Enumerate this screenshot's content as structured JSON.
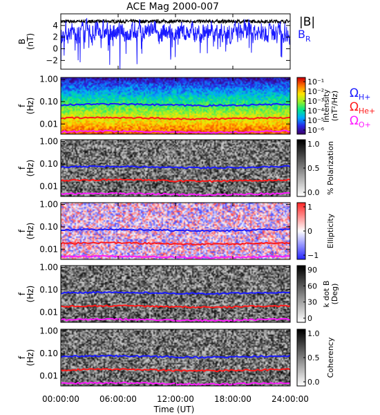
{
  "title": "ACE Mag 2000-007",
  "chart_data": [
    {
      "type": "line",
      "ylabel": "B\n(nT)",
      "ylim": [
        -3.5,
        6
      ],
      "yticks": [
        "4",
        "2",
        "0",
        "−2"
      ],
      "ytick_values": [
        4,
        2,
        0,
        -2
      ],
      "series": [
        {
          "name": "|B|",
          "color": "#000000",
          "mean": 4.7,
          "spread": 0.3
        },
        {
          "name": "B_R",
          "color": "#1a1aff",
          "mean": 2.8,
          "spread": 2.0
        }
      ]
    },
    {
      "type": "heatmap",
      "ylabel": "f\n(Hz)",
      "yticks": [
        "1.00",
        "0.10",
        "0.01"
      ],
      "ytick_values": [
        1.0,
        0.1,
        0.01
      ],
      "ylim": [
        0.0035,
        1.2
      ],
      "colormap": "rainbow",
      "colorbar_label": "Intensity\n(nT²/Hz)",
      "colorbar_ticks": [
        "10⁻¹",
        "10⁻²",
        "10⁻³",
        "10⁻⁴",
        "10⁻⁵",
        "10⁻⁶"
      ]
    },
    {
      "type": "heatmap",
      "ylabel": "f\n(Hz)",
      "yticks": [
        "1.00",
        "0.10",
        "0.01"
      ],
      "ytick_values": [
        1.0,
        0.1,
        0.01
      ],
      "ylim": [
        0.0035,
        1.2
      ],
      "colormap": "gray",
      "colorbar_label": "% Polarization",
      "colorbar_ticks": [
        "1.0",
        "0.5",
        "0.0"
      ]
    },
    {
      "type": "heatmap",
      "ylabel": "f\n(Hz)",
      "yticks": [
        "1.00",
        "0.10",
        "0.01"
      ],
      "ytick_values": [
        1.0,
        0.1,
        0.01
      ],
      "ylim": [
        0.0035,
        1.2
      ],
      "colormap": "bluewhitered",
      "colorbar_label": "Ellipticity",
      "colorbar_ticks": [
        "1",
        "0",
        "−1"
      ]
    },
    {
      "type": "heatmap",
      "ylabel": "f\n(Hz)",
      "yticks": [
        "1.00",
        "0.10",
        "0.01"
      ],
      "ytick_values": [
        1.0,
        0.1,
        0.01
      ],
      "ylim": [
        0.0035,
        1.2
      ],
      "colormap": "gray",
      "colorbar_label": "k dot B\n(Deg)",
      "colorbar_ticks": [
        "90",
        "60",
        "30",
        "0"
      ]
    },
    {
      "type": "heatmap",
      "ylabel": "f\n(Hz)",
      "yticks": [
        "1.00",
        "0.10",
        "0.01"
      ],
      "ytick_values": [
        1.0,
        0.1,
        0.01
      ],
      "ylim": [
        0.0035,
        1.2
      ],
      "colormap": "gray",
      "colorbar_label": "Coherency",
      "colorbar_ticks": [
        "1.0",
        "0.5",
        "0.0"
      ]
    }
  ],
  "gyrofrequencies": [
    {
      "label": "Ω",
      "sub": "H+",
      "color": "#1a1aff",
      "f_hz": 0.072
    },
    {
      "label": "Ω",
      "sub": "He+",
      "color": "#ff1a1a",
      "f_hz": 0.018
    },
    {
      "label": "Ω",
      "sub": "O+",
      "color": "#ff1aff",
      "f_hz": 0.0045
    }
  ],
  "legend_top": {
    "b_total": "|B|",
    "b_r": "B",
    "b_r_sub": "R"
  },
  "xaxis": {
    "label": "Time (UT)",
    "ticks": [
      "00:00:00",
      "06:00:00",
      "12:00:00",
      "18:00:00",
      "24:00:00"
    ],
    "tick_hours": [
      0,
      6,
      12,
      18,
      24
    ],
    "range_hours": [
      0,
      24
    ]
  },
  "colors": {
    "bg": "#ffffff",
    "axis": "#000000"
  }
}
